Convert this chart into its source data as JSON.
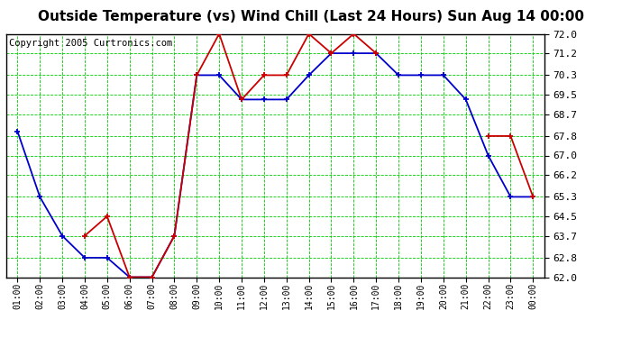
{
  "title": "Outside Temperature (vs) Wind Chill (Last 24 Hours) Sun Aug 14 00:00",
  "copyright": "Copyright 2005 Curtronics.com",
  "hours": [
    "01:00",
    "02:00",
    "03:00",
    "04:00",
    "05:00",
    "06:00",
    "07:00",
    "08:00",
    "09:00",
    "10:00",
    "11:00",
    "12:00",
    "13:00",
    "14:00",
    "15:00",
    "16:00",
    "17:00",
    "18:00",
    "19:00",
    "20:00",
    "21:00",
    "22:00",
    "23:00",
    "00:00"
  ],
  "blue_data": [
    68.0,
    65.3,
    63.7,
    62.8,
    62.8,
    62.0,
    62.0,
    63.7,
    70.3,
    70.3,
    69.3,
    69.3,
    69.3,
    70.3,
    71.2,
    71.2,
    71.2,
    70.3,
    70.3,
    70.3,
    69.3,
    67.0,
    65.3,
    65.3
  ],
  "red_data": [
    null,
    null,
    null,
    63.7,
    64.5,
    62.0,
    62.0,
    63.7,
    70.3,
    72.0,
    69.3,
    70.3,
    70.3,
    72.0,
    71.2,
    72.0,
    71.2,
    null,
    null,
    null,
    null,
    67.8,
    67.8,
    65.3
  ],
  "ylim": [
    62.0,
    72.0
  ],
  "yticks": [
    62.0,
    62.8,
    63.7,
    64.5,
    65.3,
    66.2,
    67.0,
    67.8,
    68.7,
    69.5,
    70.3,
    71.2,
    72.0
  ],
  "blue_color": "#0000cc",
  "red_color": "#cc0000",
  "bg_color": "#ffffff",
  "grid_color": "#00cc00",
  "title_fontsize": 11,
  "copyright_fontsize": 7.5
}
